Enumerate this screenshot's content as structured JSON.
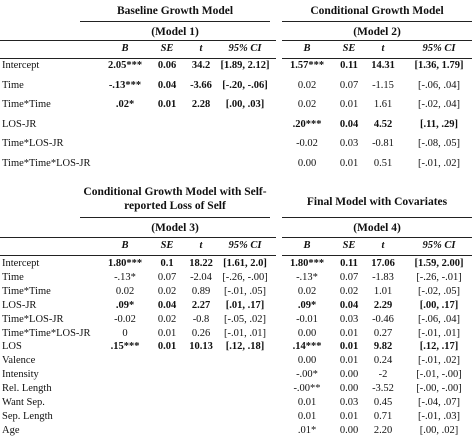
{
  "top": {
    "model1": {
      "title": "Baseline Growth Model",
      "subtitle": "(Model 1)"
    },
    "model2": {
      "title": "Conditional Growth Model",
      "subtitle": "(Model 2)"
    },
    "columns": [
      "B",
      "SE",
      "t",
      "95% CI"
    ],
    "rows": [
      {
        "label": "Intercept",
        "m1": [
          [
            "2.05***",
            1
          ],
          [
            "0.06",
            1
          ],
          [
            "34.2",
            1
          ],
          [
            "[1.89, 2.12]",
            1
          ]
        ],
        "m2": [
          [
            "1.57***",
            1
          ],
          [
            "0.11",
            1
          ],
          [
            "14.31",
            1
          ],
          [
            "[1.36, 1.79]",
            1
          ]
        ]
      },
      {
        "label": "Time",
        "m1": [
          [
            "-.13***",
            1
          ],
          [
            "0.04",
            1
          ],
          [
            "-3.66",
            1
          ],
          [
            "[-.20, -.06]",
            1
          ]
        ],
        "m2": [
          [
            "0.02",
            0
          ],
          [
            "0.07",
            0
          ],
          [
            "-1.15",
            0
          ],
          [
            "[-.06, .04]",
            0
          ]
        ]
      },
      {
        "label": "Time*Time",
        "m1": [
          [
            ".02*",
            1
          ],
          [
            "0.01",
            1
          ],
          [
            "2.28",
            1
          ],
          [
            "[.00, .03]",
            1
          ]
        ],
        "m2": [
          [
            "0.02",
            0
          ],
          [
            "0.01",
            0
          ],
          [
            "1.61",
            0
          ],
          [
            "[-.02, .04]",
            0
          ]
        ]
      },
      {
        "label": "LOS-JR",
        "m1": [
          [
            "",
            0
          ],
          [
            "",
            0
          ],
          [
            "",
            0
          ],
          [
            "",
            0
          ]
        ],
        "m2": [
          [
            ".20***",
            1
          ],
          [
            "0.04",
            1
          ],
          [
            "4.52",
            1
          ],
          [
            "[.11, .29]",
            1
          ]
        ]
      },
      {
        "label": "Time*LOS-JR",
        "m1": [
          [
            "",
            0
          ],
          [
            "",
            0
          ],
          [
            "",
            0
          ],
          [
            "",
            0
          ]
        ],
        "m2": [
          [
            "-0.02",
            0
          ],
          [
            "0.03",
            0
          ],
          [
            "-0.81",
            0
          ],
          [
            "[-.08, .05]",
            0
          ]
        ]
      },
      {
        "label": "Time*Time*LOS-JR",
        "m1": [
          [
            "",
            0
          ],
          [
            "",
            0
          ],
          [
            "",
            0
          ],
          [
            "",
            0
          ]
        ],
        "m2": [
          [
            "0.00",
            0
          ],
          [
            "0.01",
            0
          ],
          [
            "0.51",
            0
          ],
          [
            "[-.01, .02]",
            0
          ]
        ]
      }
    ]
  },
  "bottom": {
    "model3": {
      "title": "Conditional Growth Model with Self-",
      "title2": "reported Loss of Self",
      "subtitle": "(Model 3)"
    },
    "model4": {
      "title": "Final Model with Covariates",
      "subtitle": "(Model 4)"
    },
    "columns": [
      "B",
      "SE",
      "t",
      "95% CI"
    ],
    "rows": [
      {
        "label": "Intercept",
        "m3": [
          [
            "1.80***",
            1
          ],
          [
            "0.1",
            1
          ],
          [
            "18.22",
            1
          ],
          [
            "[1.61, 2.0]",
            1
          ]
        ],
        "m4": [
          [
            "1.80***",
            1
          ],
          [
            "0.11",
            1
          ],
          [
            "17.06",
            1
          ],
          [
            "[1.59, 2.00]",
            1
          ]
        ]
      },
      {
        "label": "Time",
        "m3": [
          [
            "-.13*",
            0
          ],
          [
            "0.07",
            0
          ],
          [
            "-2.04",
            0
          ],
          [
            "[-.26, -.00]",
            0
          ]
        ],
        "m4": [
          [
            "-.13*",
            0
          ],
          [
            "0.07",
            0
          ],
          [
            "-1.83",
            0
          ],
          [
            "[-.26, -.01]",
            0
          ]
        ]
      },
      {
        "label": "Time*Time",
        "m3": [
          [
            "0.02",
            0
          ],
          [
            "0.02",
            0
          ],
          [
            "0.89",
            0
          ],
          [
            "[-.01, .05]",
            0
          ]
        ],
        "m4": [
          [
            "0.02",
            0
          ],
          [
            "0.02",
            0
          ],
          [
            "1.01",
            0
          ],
          [
            "[-.02, .05]",
            0
          ]
        ]
      },
      {
        "label": "LOS-JR",
        "m3": [
          [
            ".09*",
            1
          ],
          [
            "0.04",
            1
          ],
          [
            "2.27",
            1
          ],
          [
            "[.01, .17]",
            1
          ]
        ],
        "m4": [
          [
            ".09*",
            1
          ],
          [
            "0.04",
            1
          ],
          [
            "2.29",
            1
          ],
          [
            "[.00, .17]",
            1
          ]
        ]
      },
      {
        "label": "Time*LOS-JR",
        "m3": [
          [
            "-0.02",
            0
          ],
          [
            "0.02",
            0
          ],
          [
            "-0.8",
            0
          ],
          [
            "[-.05, .02]",
            0
          ]
        ],
        "m4": [
          [
            "-0.01",
            0
          ],
          [
            "0.03",
            0
          ],
          [
            "-0.46",
            0
          ],
          [
            "[-.06, .04]",
            0
          ]
        ]
      },
      {
        "label": "Time*Time*LOS-JR",
        "m3": [
          [
            "0",
            0
          ],
          [
            "0.01",
            0
          ],
          [
            "0.26",
            0
          ],
          [
            "[-.01, .01]",
            0
          ]
        ],
        "m4": [
          [
            "0.00",
            0
          ],
          [
            "0.01",
            0
          ],
          [
            "0.27",
            0
          ],
          [
            "[-.01, .01]",
            0
          ]
        ]
      },
      {
        "label": "LOS",
        "m3": [
          [
            ".15***",
            1
          ],
          [
            "0.01",
            1
          ],
          [
            "10.13",
            1
          ],
          [
            "[.12, .18]",
            1
          ]
        ],
        "m4": [
          [
            ".14***",
            1
          ],
          [
            "0.01",
            1
          ],
          [
            "9.82",
            1
          ],
          [
            "[.12, .17]",
            1
          ]
        ]
      },
      {
        "label": "Valence",
        "m3": [
          [
            "",
            0
          ],
          [
            "",
            0
          ],
          [
            "",
            0
          ],
          [
            "",
            0
          ]
        ],
        "m4": [
          [
            "0.00",
            0
          ],
          [
            "0.01",
            0
          ],
          [
            "0.24",
            0
          ],
          [
            "[-.01, .02]",
            0
          ]
        ]
      },
      {
        "label": "Intensity",
        "m3": [
          [
            "",
            0
          ],
          [
            "",
            0
          ],
          [
            "",
            0
          ],
          [
            "",
            0
          ]
        ],
        "m4": [
          [
            "-.00*",
            0
          ],
          [
            "0.00",
            0
          ],
          [
            "-2",
            0
          ],
          [
            "[-.01, -.00]",
            0
          ]
        ]
      },
      {
        "label": "Rel. Length",
        "m3": [
          [
            "",
            0
          ],
          [
            "",
            0
          ],
          [
            "",
            0
          ],
          [
            "",
            0
          ]
        ],
        "m4": [
          [
            "-.00**",
            0
          ],
          [
            "0.00",
            0
          ],
          [
            "-3.52",
            0
          ],
          [
            "[-.00, -.00]",
            0
          ]
        ]
      },
      {
        "label": "Want Sep.",
        "m3": [
          [
            "",
            0
          ],
          [
            "",
            0
          ],
          [
            "",
            0
          ],
          [
            "",
            0
          ]
        ],
        "m4": [
          [
            "0.01",
            0
          ],
          [
            "0.03",
            0
          ],
          [
            "0.45",
            0
          ],
          [
            "[-.04, .07]",
            0
          ]
        ]
      },
      {
        "label": "Sep. Length",
        "m3": [
          [
            "",
            0
          ],
          [
            "",
            0
          ],
          [
            "",
            0
          ],
          [
            "",
            0
          ]
        ],
        "m4": [
          [
            "0.01",
            0
          ],
          [
            "0.01",
            0
          ],
          [
            "0.71",
            0
          ],
          [
            "[-.01, .03]",
            0
          ]
        ]
      },
      {
        "label": "Age",
        "m3": [
          [
            "",
            0
          ],
          [
            "",
            0
          ],
          [
            "",
            0
          ],
          [
            "",
            0
          ]
        ],
        "m4": [
          [
            ".01*",
            0
          ],
          [
            "0.00",
            0
          ],
          [
            "2.20",
            0
          ],
          [
            "[.00, .02]",
            0
          ]
        ]
      }
    ]
  }
}
